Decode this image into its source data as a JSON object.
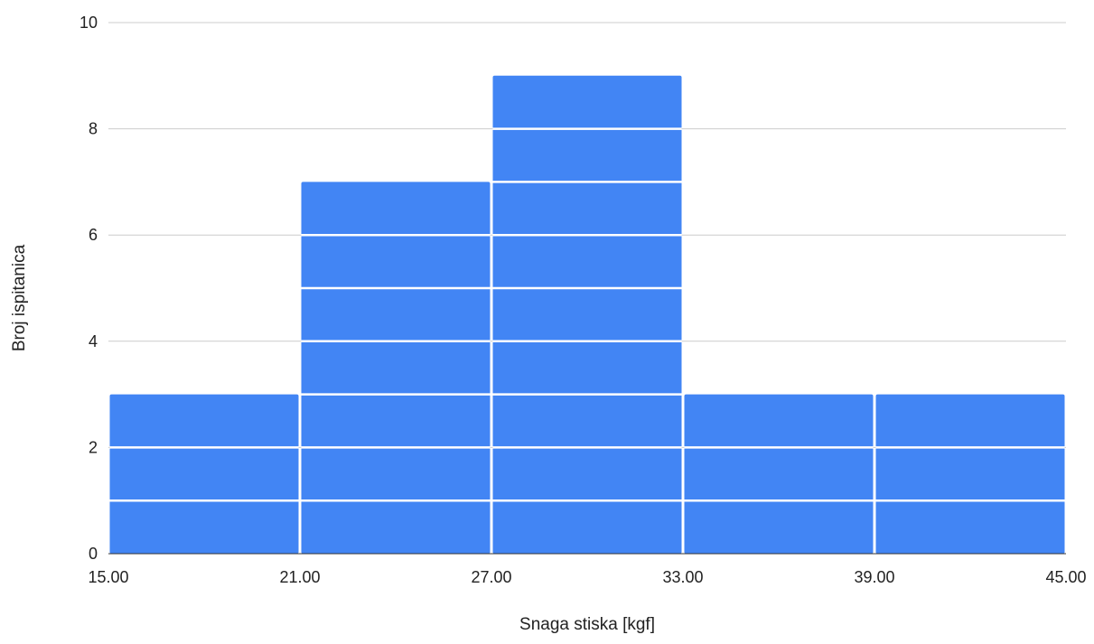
{
  "chart_data": {
    "type": "bar",
    "subtype": "histogram",
    "title": "",
    "xlabel": "Snaga stiska [kgf]",
    "ylabel": "Broj ispitanica",
    "bins": [
      {
        "start": 15,
        "end": 21,
        "count": 3
      },
      {
        "start": 21,
        "end": 27,
        "count": 7
      },
      {
        "start": 27,
        "end": 33,
        "count": 9
      },
      {
        "start": 33,
        "end": 39,
        "count": 3
      },
      {
        "start": 39,
        "end": 45,
        "count": 3
      }
    ],
    "xlim": [
      15,
      45
    ],
    "ylim": [
      0,
      10
    ],
    "x_ticks": [
      "15.00",
      "21.00",
      "27.00",
      "33.00",
      "39.00",
      "45.00"
    ],
    "y_ticks": [
      "0",
      "2",
      "4",
      "6",
      "8",
      "10"
    ],
    "unit_stack_lines": true,
    "grid": true,
    "legend": "none",
    "colors": {
      "bar": "#4285f4",
      "grid": "#cccccc",
      "separator": "#ffffff",
      "text": "#222222"
    }
  }
}
